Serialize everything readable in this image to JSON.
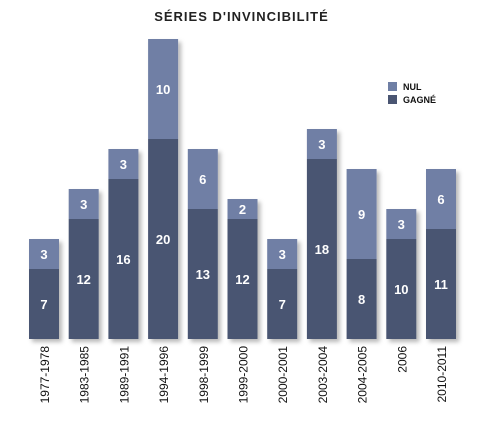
{
  "chart_data": {
    "type": "bar",
    "stacked": true,
    "title": "SÉRIES D'INVINCIBILITÉ",
    "categories": [
      "1977-1978",
      "1983-1985",
      "1989-1991",
      "1994-1996",
      "1998-1999",
      "1999-2000",
      "2000-2001",
      "2003-2004",
      "2004-2005",
      "2006",
      "2010-2011"
    ],
    "series": [
      {
        "name": "GAGNÉ",
        "values": [
          7,
          12,
          16,
          20,
          13,
          12,
          7,
          18,
          8,
          10,
          11
        ],
        "color": "#4a5572"
      },
      {
        "name": "NUL",
        "values": [
          3,
          3,
          3,
          10,
          6,
          2,
          3,
          3,
          9,
          3,
          6
        ],
        "color": "#6f7fa5"
      }
    ],
    "legend": [
      "NUL",
      "GAGNÉ"
    ],
    "legend_position": "top-right",
    "ylim": [
      0,
      30
    ],
    "grid": false
  }
}
